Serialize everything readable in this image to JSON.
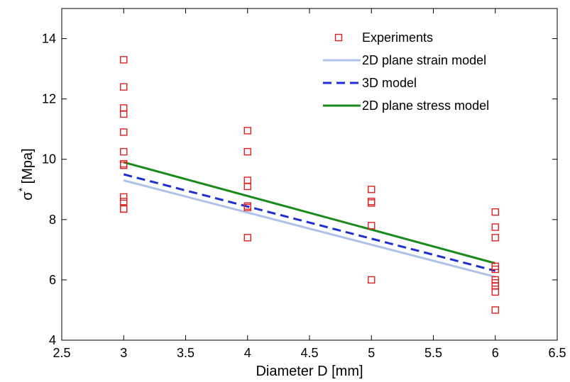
{
  "chart_data": {
    "type": "scatter",
    "title": "",
    "xlabel": "Diameter D [mm]",
    "ylabel_main": "σ",
    "ylabel_sup": "*",
    "ylabel_rest": " [Mpa]",
    "xlim": [
      2.5,
      6.5
    ],
    "ylim": [
      4,
      15
    ],
    "xticks": [
      "2.5",
      "3",
      "3.5",
      "4",
      "4.5",
      "5",
      "5.5",
      "6",
      "6.5"
    ],
    "xtick_values": [
      2.5,
      3,
      3.5,
      4,
      4.5,
      5,
      5.5,
      6,
      6.5
    ],
    "yticks": [
      "4",
      "6",
      "8",
      "10",
      "12",
      "14"
    ],
    "ytick_values": [
      4,
      6,
      8,
      10,
      12,
      14
    ],
    "grid": false,
    "legend_position": "top-right",
    "series": [
      {
        "name": "Experiments",
        "kind": "markers",
        "color": "#e02020",
        "x": [
          3,
          3,
          3,
          3,
          3,
          3,
          3,
          3,
          3,
          3,
          3,
          3,
          4,
          4,
          4,
          4,
          4,
          4,
          4,
          5,
          5,
          5,
          5,
          5,
          6,
          6,
          6,
          6,
          6,
          6,
          6,
          6,
          6,
          6
        ],
        "y": [
          13.3,
          12.4,
          11.7,
          11.5,
          10.9,
          10.25,
          9.85,
          9.8,
          8.75,
          8.6,
          8.35,
          8.35,
          10.95,
          10.25,
          9.3,
          9.1,
          8.45,
          8.4,
          7.4,
          9.0,
          8.6,
          8.55,
          7.8,
          6.0,
          8.25,
          7.75,
          7.4,
          6.45,
          6.35,
          6.0,
          5.9,
          5.8,
          5.6,
          5.0
        ]
      },
      {
        "name": "2D plane strain model",
        "kind": "line",
        "color": "#aec2e8",
        "dash": "solid",
        "x": [
          3,
          6
        ],
        "y": [
          9.3,
          6.1
        ]
      },
      {
        "name": "3D model",
        "kind": "line",
        "color": "#1f2fd0",
        "dash": "dashed",
        "x": [
          3,
          6
        ],
        "y": [
          9.5,
          6.3
        ]
      },
      {
        "name": "2D plane stress model",
        "kind": "line",
        "color": "#1a8a1a",
        "dash": "solid",
        "x": [
          3,
          6
        ],
        "y": [
          9.9,
          6.55
        ]
      }
    ]
  }
}
